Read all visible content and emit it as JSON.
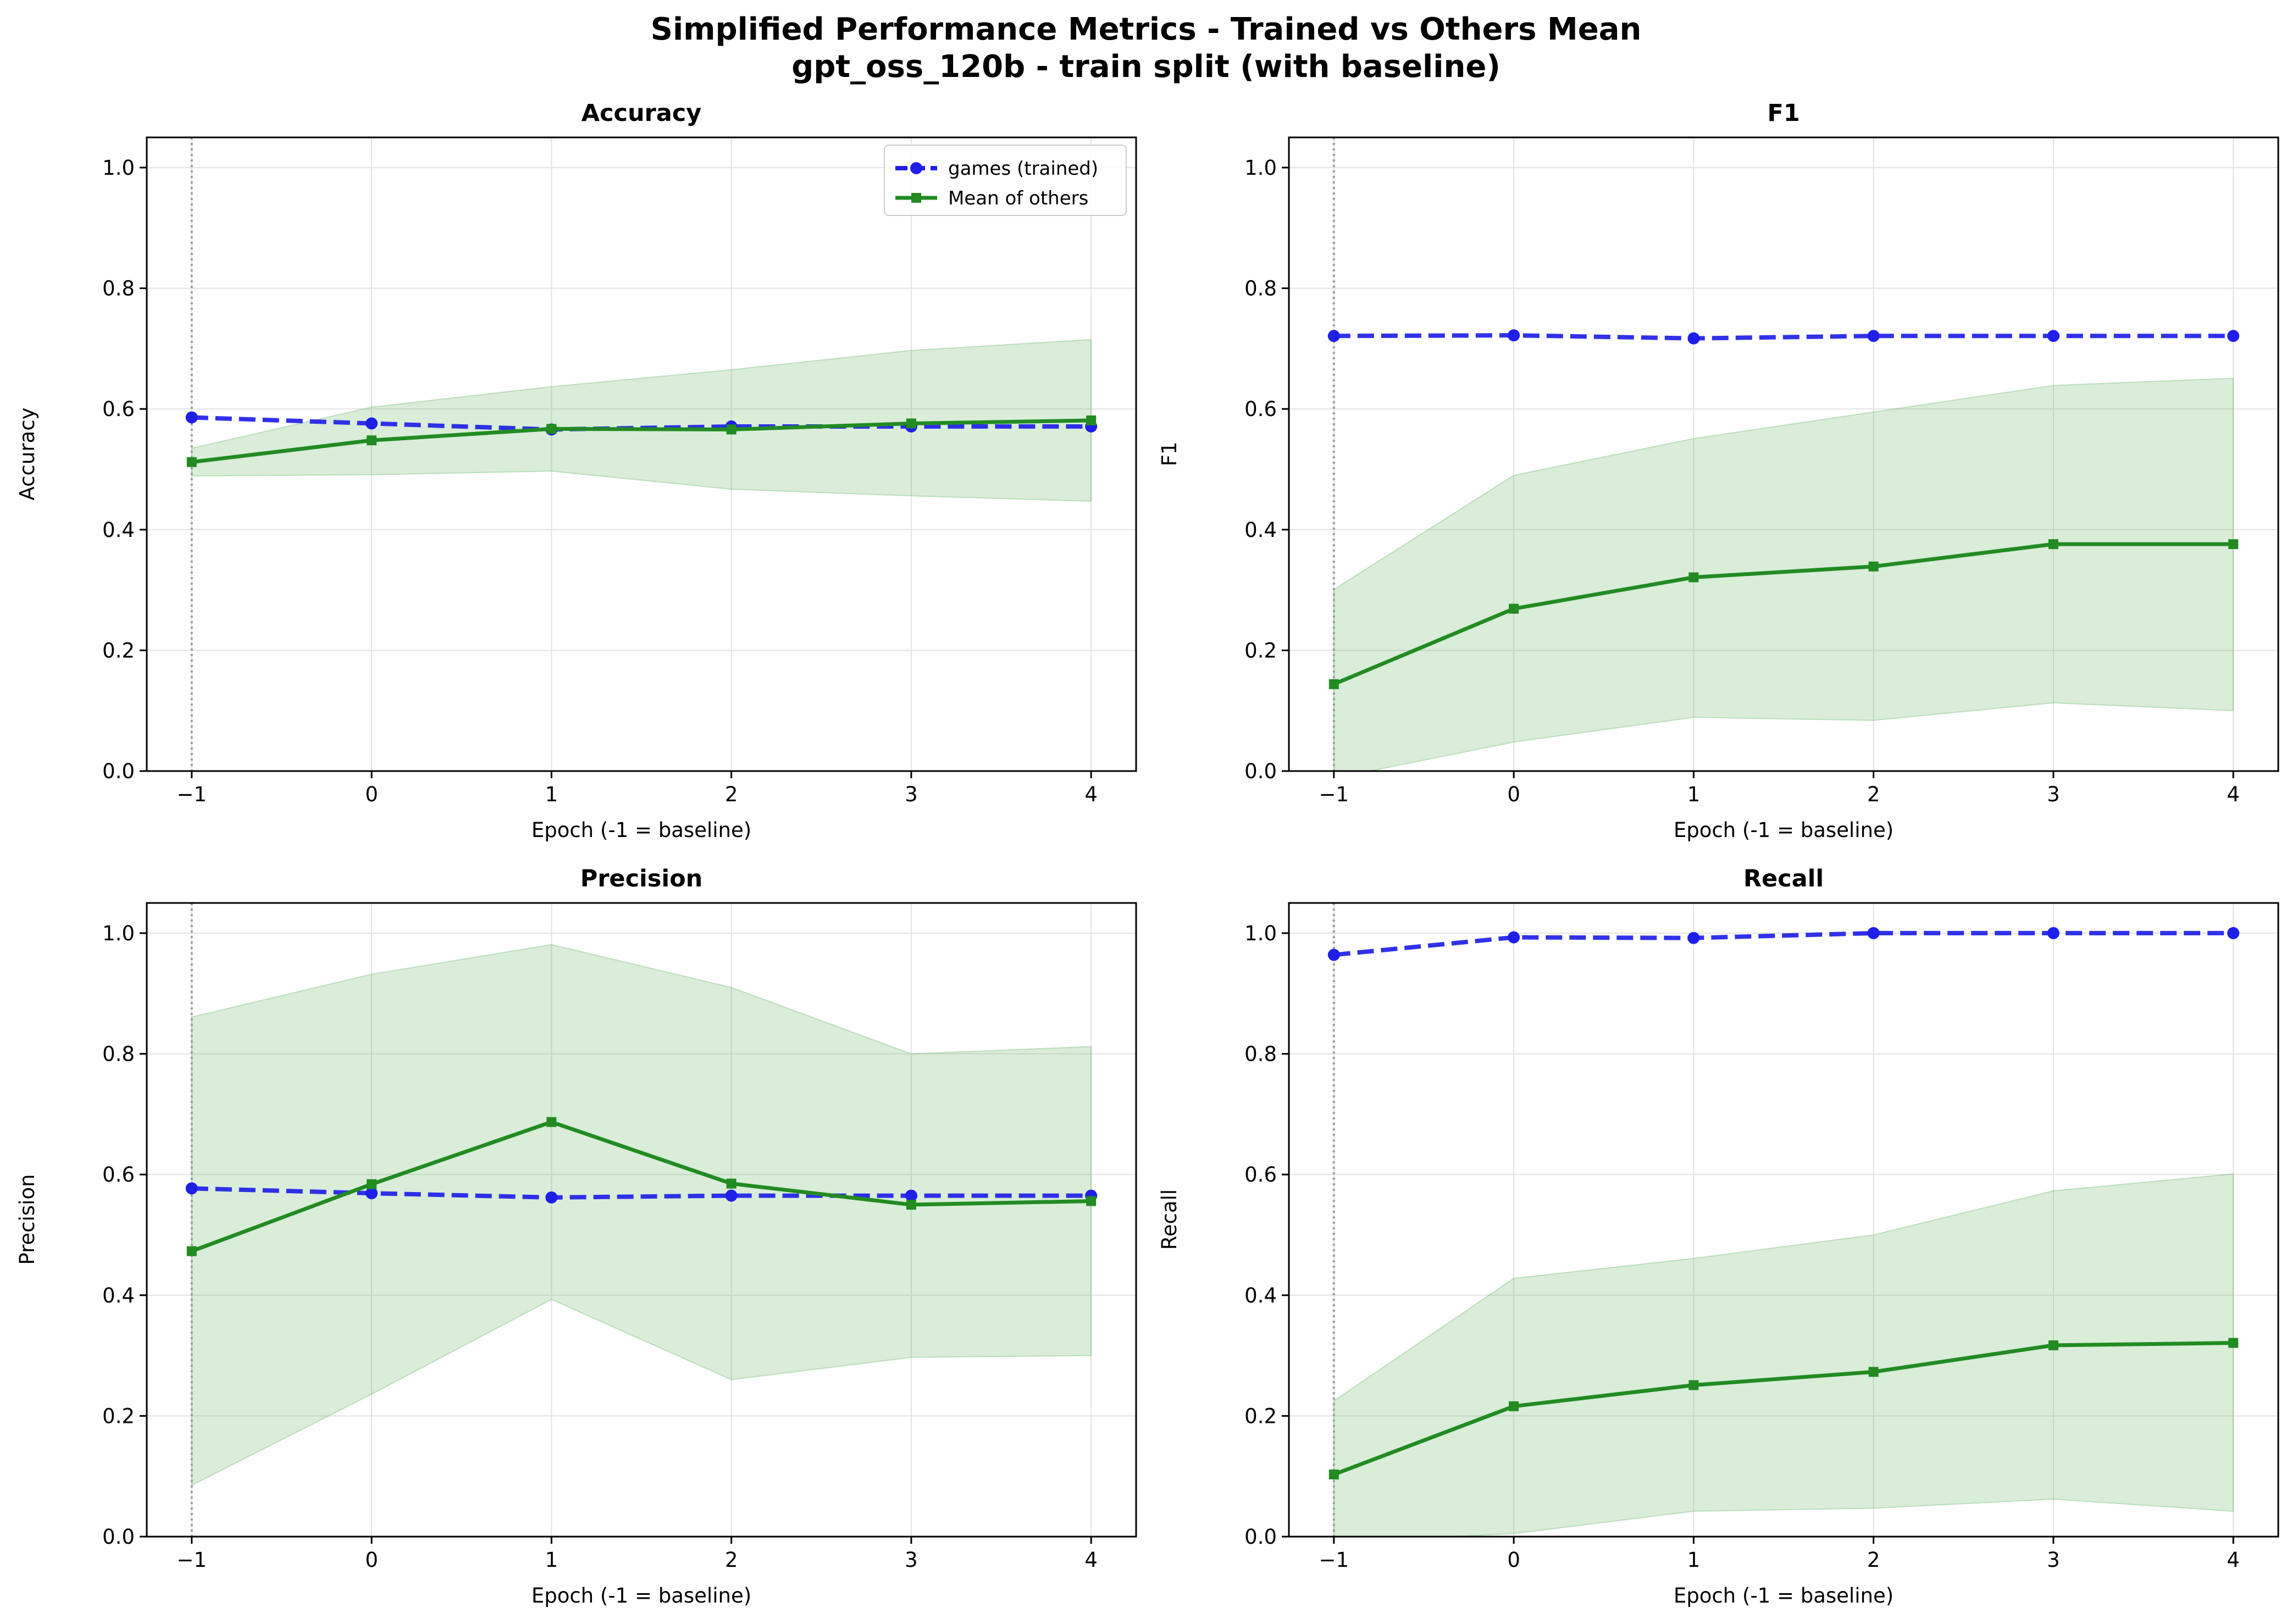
{
  "figure": {
    "title_line1": "Simplified Performance Metrics - Trained vs Others Mean",
    "title_line2": "gpt_oss_120b - train split (with baseline)"
  },
  "colors": {
    "trained": "#1f1fe8",
    "others": "#228b22",
    "band": "#2e9c2e",
    "baseline_line": "#a0a0a0",
    "grid": "#e3e3e3"
  },
  "chart_data": [
    {
      "type": "line",
      "title": "Accuracy",
      "xlabel": "Epoch (-1 = baseline)",
      "ylabel": "Accuracy",
      "x": [
        -1,
        0,
        1,
        2,
        3,
        4
      ],
      "xlim": [
        -1.25,
        4.25
      ],
      "ylim": [
        0,
        1.05
      ],
      "yticks": [
        0.0,
        0.2,
        0.4,
        0.6,
        0.8,
        1.0
      ],
      "grid": true,
      "legend": "top-right",
      "series": [
        {
          "name": "games (trained)",
          "values": [
            0.586,
            0.576,
            0.566,
            0.571,
            0.571,
            0.571
          ]
        },
        {
          "name": "Mean of others",
          "values": [
            0.512,
            0.548,
            0.567,
            0.566,
            0.576,
            0.581
          ],
          "lower": [
            0.489,
            0.491,
            0.497,
            0.467,
            0.456,
            0.447
          ],
          "upper": [
            0.535,
            0.603,
            0.637,
            0.665,
            0.697,
            0.715
          ]
        }
      ]
    },
    {
      "type": "line",
      "title": "F1",
      "xlabel": "Epoch (-1 = baseline)",
      "ylabel": "F1",
      "x": [
        -1,
        0,
        1,
        2,
        3,
        4
      ],
      "xlim": [
        -1.25,
        4.25
      ],
      "ylim": [
        0,
        1.05
      ],
      "yticks": [
        0.0,
        0.2,
        0.4,
        0.6,
        0.8,
        1.0
      ],
      "grid": true,
      "series": [
        {
          "name": "games (trained)",
          "values": [
            0.721,
            0.722,
            0.717,
            0.721,
            0.721,
            0.721
          ]
        },
        {
          "name": "Mean of others",
          "values": [
            0.144,
            0.269,
            0.321,
            0.339,
            0.376,
            0.376
          ],
          "lower": [
            -0.012,
            0.048,
            0.089,
            0.084,
            0.113,
            0.1
          ],
          "upper": [
            0.301,
            0.49,
            0.551,
            0.595,
            0.639,
            0.651
          ]
        }
      ]
    },
    {
      "type": "line",
      "title": "Precision",
      "xlabel": "Epoch (-1 = baseline)",
      "ylabel": "Precision",
      "x": [
        -1,
        0,
        1,
        2,
        3,
        4
      ],
      "xlim": [
        -1.25,
        4.25
      ],
      "ylim": [
        0,
        1.05
      ],
      "yticks": [
        0.0,
        0.2,
        0.4,
        0.6,
        0.8,
        1.0
      ],
      "grid": true,
      "series": [
        {
          "name": "games (trained)",
          "values": [
            0.577,
            0.569,
            0.562,
            0.565,
            0.565,
            0.565
          ]
        },
        {
          "name": "Mean of others",
          "values": [
            0.473,
            0.584,
            0.687,
            0.585,
            0.55,
            0.556
          ],
          "lower": [
            0.085,
            0.236,
            0.393,
            0.26,
            0.297,
            0.3
          ],
          "upper": [
            0.861,
            0.932,
            0.981,
            0.91,
            0.8,
            0.812
          ]
        }
      ]
    },
    {
      "type": "line",
      "title": "Recall",
      "xlabel": "Epoch (-1 = baseline)",
      "ylabel": "Recall",
      "x": [
        -1,
        0,
        1,
        2,
        3,
        4
      ],
      "xlim": [
        -1.25,
        4.25
      ],
      "ylim": [
        0,
        1.05
      ],
      "yticks": [
        0.0,
        0.2,
        0.4,
        0.6,
        0.8,
        1.0
      ],
      "grid": true,
      "series": [
        {
          "name": "games (trained)",
          "values": [
            0.964,
            0.993,
            0.992,
            1.0,
            1.0,
            1.0
          ]
        },
        {
          "name": "Mean of others",
          "values": [
            0.103,
            0.216,
            0.251,
            0.273,
            0.317,
            0.321
          ],
          "lower": [
            -0.01,
            0.005,
            0.042,
            0.047,
            0.062,
            0.042
          ],
          "upper": [
            0.225,
            0.428,
            0.461,
            0.5,
            0.573,
            0.601
          ]
        }
      ]
    }
  ]
}
